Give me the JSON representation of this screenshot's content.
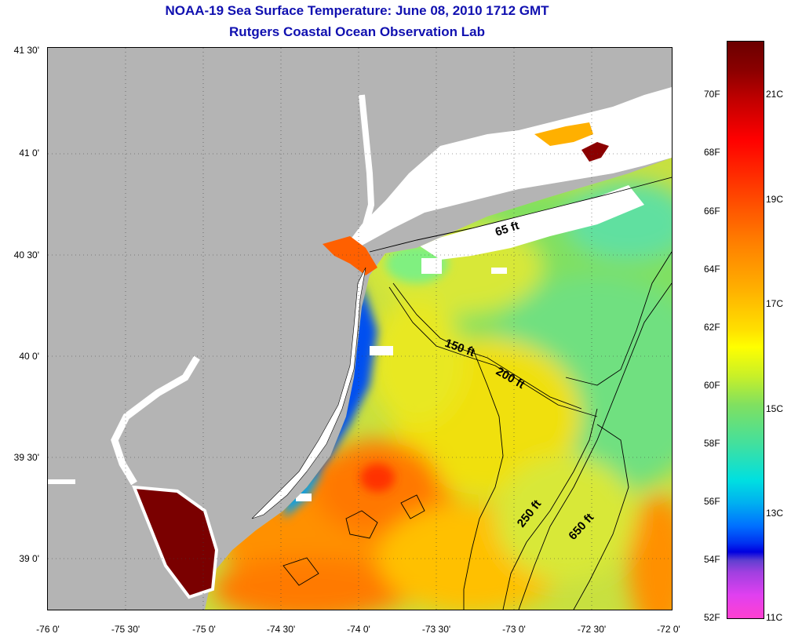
{
  "title": {
    "line1": "NOAA-19 Sea Surface Temperature:  June 08, 2010 1712 GMT",
    "line2": "Rutgers Coastal Ocean Observation Lab"
  },
  "lat_labels": [
    "41 30'",
    "41 0'",
    "40 30'",
    "40 0'",
    "39 30'",
    "39 0'"
  ],
  "lon_labels": [
    "-76 0'",
    "-75 30'",
    "-75 0'",
    "-74 30'",
    "-74 0'",
    "-73 30'",
    "-73 0'",
    "-72 30'",
    "-72 0'"
  ],
  "contours": [
    "65 ft",
    "150 ft",
    "200 ft",
    "250 ft",
    "650 ft"
  ],
  "colorbar": {
    "fahrenheit": [
      "70F",
      "68F",
      "66F",
      "64F",
      "62F",
      "60F",
      "58F",
      "56F",
      "54F",
      "52F"
    ],
    "celsius": [
      "21C",
      "19C",
      "17C",
      "15C",
      "13C",
      "11C"
    ],
    "range_f": [
      52,
      72
    ]
  },
  "colors": {
    "land": "#b4b4b4",
    "title": "#1010b0",
    "warmest": "#7a0000",
    "coldest": "#ff40d0"
  }
}
